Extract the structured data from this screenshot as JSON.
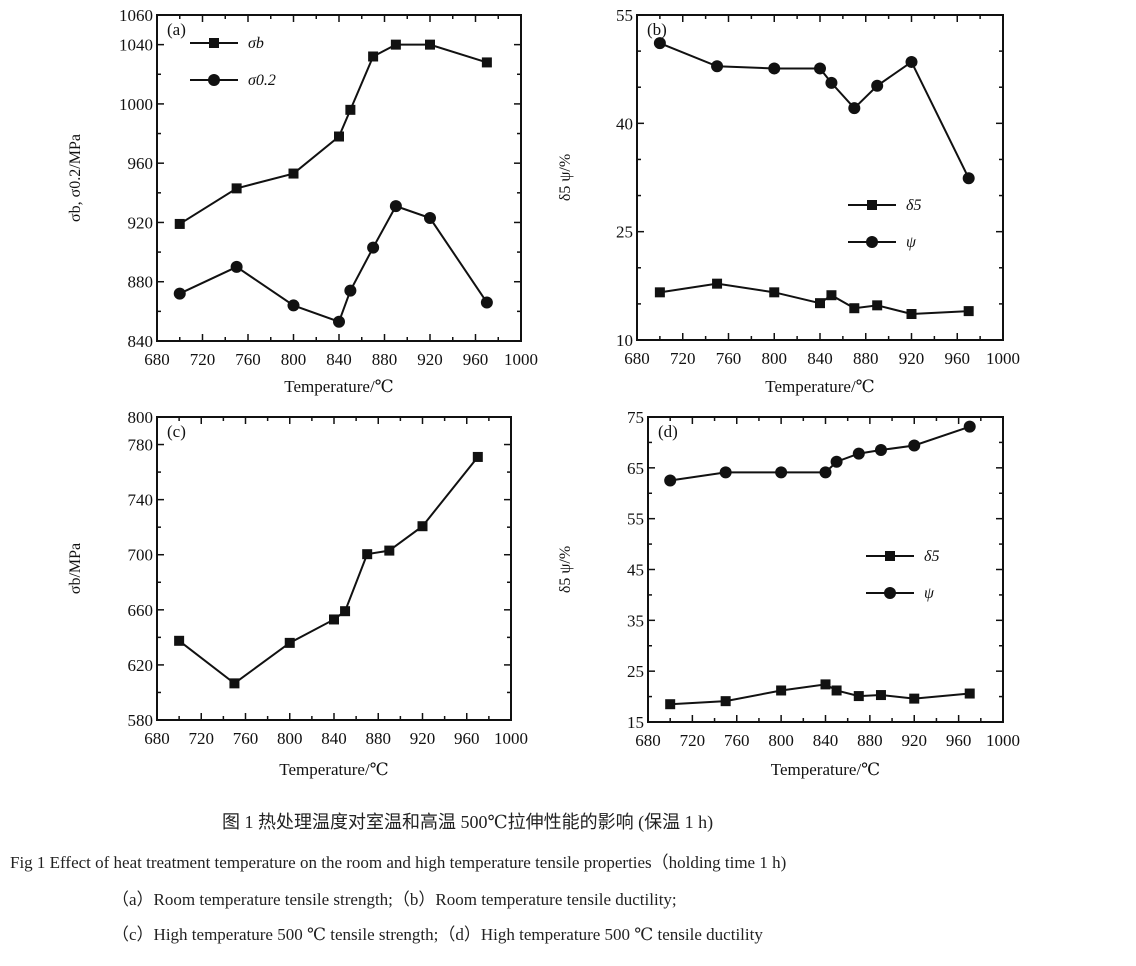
{
  "chart_data": [
    {
      "type": "line",
      "panel_label": "(a)",
      "xlabel": "Temperature/℃",
      "ylabel": "σb, σ0.2/MPa",
      "xlim": [
        680,
        1000
      ],
      "ylim": [
        840,
        1060
      ],
      "xticks": [
        "680",
        "720",
        "760",
        "800",
        "840",
        "880",
        "920",
        "960",
        "1000"
      ],
      "yticks": [
        "840",
        "880",
        "920",
        "960",
        "1000",
        "1040",
        "1060"
      ],
      "x": [
        700,
        750,
        800,
        840,
        850,
        870,
        890,
        920,
        970
      ],
      "series": [
        {
          "name": "σb",
          "marker": "square",
          "values": [
            919,
            943,
            953,
            978,
            996,
            1032,
            1040,
            1040,
            1028
          ]
        },
        {
          "name": "σ0.2",
          "marker": "circle",
          "values": [
            872,
            890,
            864,
            853,
            874,
            903,
            931,
            923,
            866
          ]
        }
      ],
      "legend": "top-left",
      "grid": false
    },
    {
      "type": "line",
      "panel_label": "(b)",
      "xlabel": "Temperature/℃",
      "ylabel": "δ5 ψ/%",
      "xlim": [
        680,
        1000
      ],
      "ylim": [
        10,
        55
      ],
      "xticks": [
        "680",
        "720",
        "760",
        "800",
        "840",
        "880",
        "920",
        "960",
        "1000"
      ],
      "yticks": [
        "10",
        "25",
        "40",
        "55"
      ],
      "x": [
        700,
        750,
        800,
        840,
        850,
        870,
        890,
        920,
        970
      ],
      "series": [
        {
          "name": "δ5",
          "marker": "square",
          "values": [
            16.6,
            17.8,
            16.6,
            15.1,
            16.2,
            14.4,
            14.8,
            13.6,
            14.0
          ]
        },
        {
          "name": "ψ",
          "marker": "circle",
          "values": [
            51.1,
            47.9,
            47.6,
            47.6,
            45.6,
            42.1,
            45.2,
            48.5,
            32.4
          ]
        }
      ],
      "legend": "center-right",
      "grid": false
    },
    {
      "type": "line",
      "panel_label": "(c)",
      "xlabel": "Temperature/℃",
      "ylabel": "σb/MPa",
      "xlim": [
        680,
        1000
      ],
      "ylim": [
        580,
        800
      ],
      "xticks": [
        "680",
        "720",
        "760",
        "800",
        "840",
        "880",
        "920",
        "960",
        "1000"
      ],
      "yticks": [
        "580",
        "620",
        "660",
        "700",
        "740",
        "780",
        "800"
      ],
      "x": [
        700,
        750,
        800,
        840,
        850,
        870,
        890,
        920,
        970
      ],
      "series": [
        {
          "marker": "square",
          "values": [
            637.5,
            606.6,
            636,
            653,
            659,
            700.4,
            703,
            720.7,
            771
          ]
        }
      ],
      "grid": false
    },
    {
      "type": "line",
      "panel_label": "(d)",
      "xlabel": "Temperature/℃",
      "ylabel": "δ5 ψ/%",
      "xlim": [
        680,
        1000
      ],
      "ylim": [
        15,
        75
      ],
      "xticks": [
        "680",
        "720",
        "760",
        "800",
        "840",
        "880",
        "920",
        "960",
        "1000"
      ],
      "yticks": [
        "15",
        "25",
        "35",
        "45",
        "55",
        "65",
        "75"
      ],
      "x": [
        700,
        750,
        800,
        840,
        850,
        870,
        890,
        920,
        970
      ],
      "series": [
        {
          "name": "δ5",
          "marker": "square",
          "values": [
            18.5,
            19.1,
            21.2,
            22.4,
            21.2,
            20.1,
            20.3,
            19.6,
            20.6
          ]
        },
        {
          "name": "ψ",
          "marker": "circle",
          "values": [
            62.5,
            64.1,
            64.1,
            64.1,
            66.2,
            67.8,
            68.5,
            69.4,
            73.1
          ]
        }
      ],
      "legend": "center-right",
      "grid": false
    }
  ],
  "caption": {
    "cn": "图 1  热处理温度对室温和高温  500℃拉伸性能的影响 (保温  1 h)",
    "en": "Fig 1    Effect of heat treatment temperature on the room and high temperature tensile properties（holding time 1 h)",
    "line_ab": "（a）Room temperature tensile strength;（b）Room temperature tensile ductility;",
    "line_cd": "（c）High temperature 500 ℃ tensile strength;（d）High temperature 500 ℃ tensile ductility"
  }
}
